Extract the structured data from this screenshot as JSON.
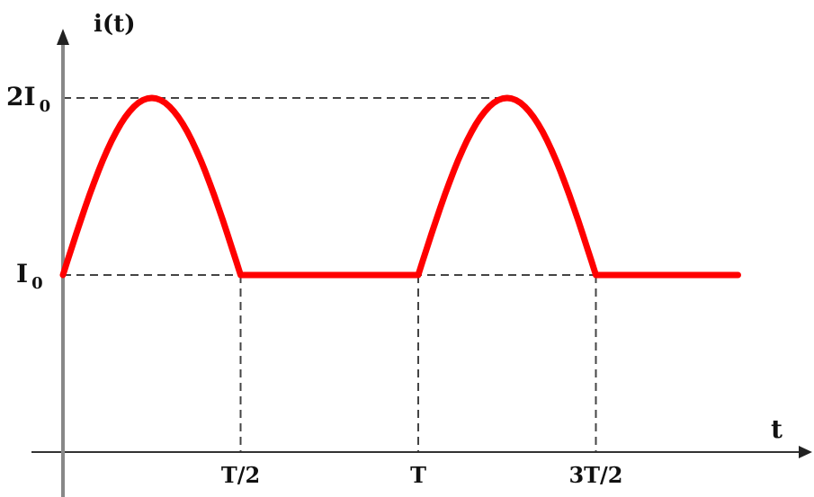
{
  "chart_data": {
    "type": "line",
    "title": "",
    "ylabel": "i(t)",
    "xlabel": "t",
    "x_ticks": [
      {
        "value": 0.5,
        "label": "T/2"
      },
      {
        "value": 1.0,
        "label": "T"
      },
      {
        "value": 1.5,
        "label": "3T/2"
      }
    ],
    "y_ticks": [
      {
        "value": 1,
        "label": "I",
        "sub": "0",
        "prefix": ""
      },
      {
        "value": 2,
        "label": "I",
        "sub": "0",
        "prefix": "2"
      }
    ],
    "xlim": [
      0,
      2.3
    ],
    "ylim": [
      0,
      2.4
    ],
    "grid": false,
    "series": [
      {
        "name": "",
        "color": "#ff0000",
        "base": 1,
        "peak": 2,
        "period": 1,
        "x_end": 1.9,
        "description_points": [
          [
            0,
            1
          ],
          [
            0.28,
            2
          ],
          [
            0.5,
            1
          ],
          [
            1.0,
            1
          ],
          [
            1.28,
            2
          ],
          [
            1.5,
            1
          ],
          [
            1.9,
            1
          ]
        ]
      }
    ],
    "axis_color": "#888888",
    "guide_color": "#444444"
  }
}
